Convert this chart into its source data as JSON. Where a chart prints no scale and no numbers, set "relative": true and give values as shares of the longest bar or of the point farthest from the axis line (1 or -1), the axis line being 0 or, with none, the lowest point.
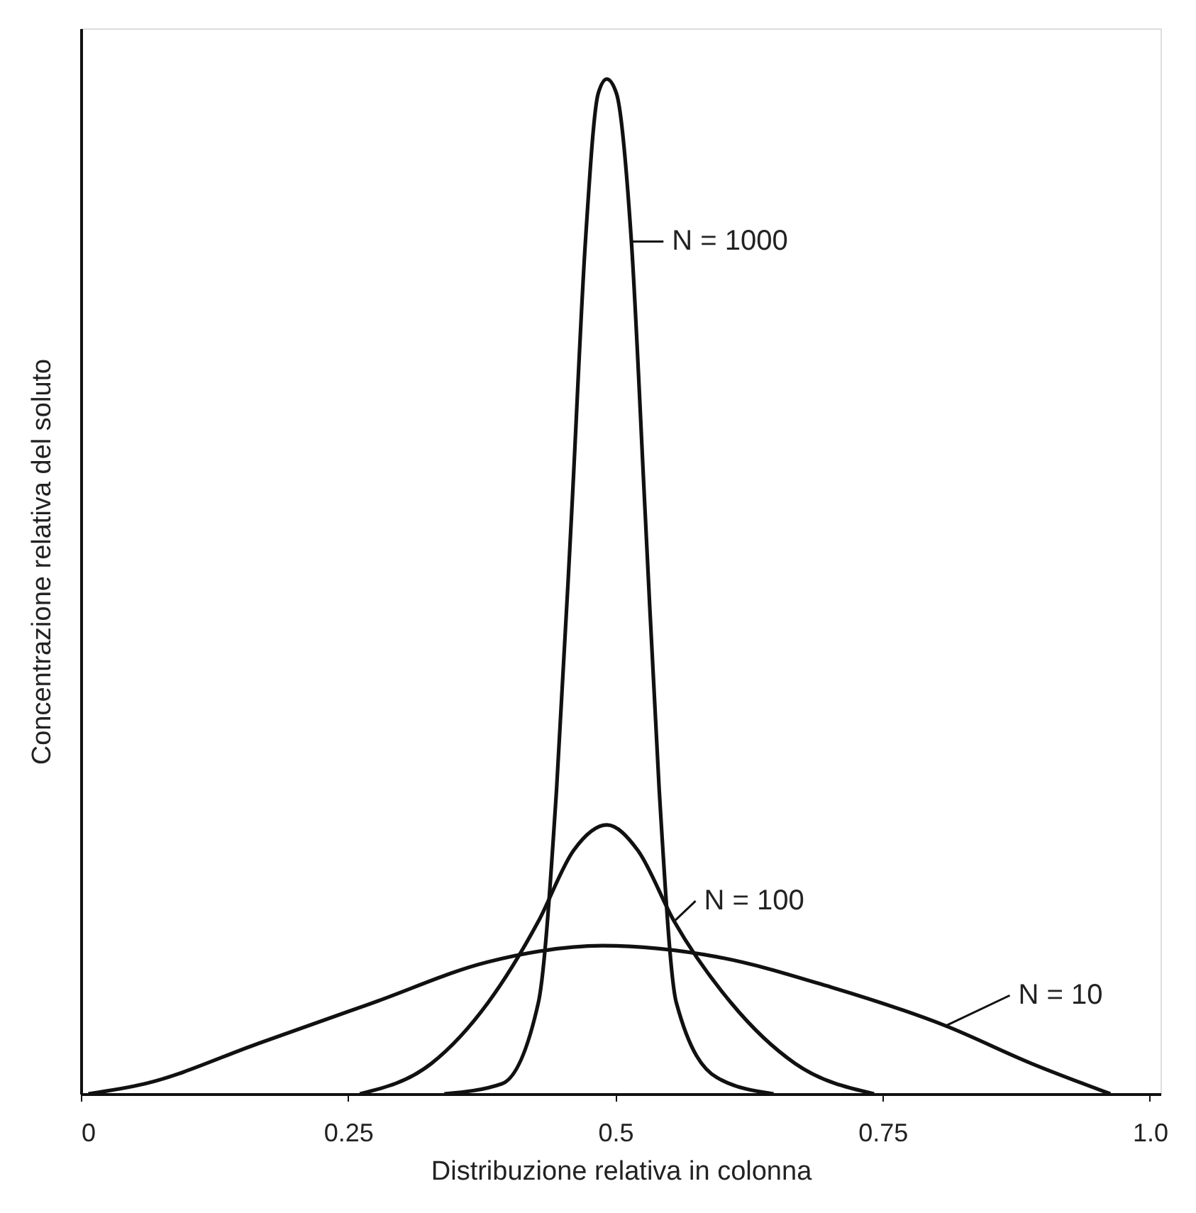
{
  "chart_data": {
    "type": "line",
    "relative": true,
    "xlabel": "Distribuzione relativa in colonna",
    "ylabel": "Concentrazione relativa del soluto",
    "xlim": [
      0,
      1.01
    ],
    "xticks": [
      0,
      0.25,
      0.5,
      0.75,
      {
        "value": 1.0,
        "label": "1.0"
      }
    ],
    "grid": false,
    "legend": "right",
    "marker": "none",
    "line_style": "solid",
    "series": [
      {
        "name": "N = 1000",
        "color": "#111111",
        "x": [
          0.34,
          0.394,
          0.428,
          0.445,
          0.459,
          0.472,
          0.484,
          0.492,
          0.501,
          0.515,
          0.528,
          0.541,
          0.557,
          0.595,
          0.648
        ],
        "values": [
          0,
          0.01,
          0.09,
          0.3,
          0.57,
          0.84,
          0.986,
          1,
          0.986,
          0.84,
          0.57,
          0.3,
          0.09,
          0.016,
          0
        ]
      },
      {
        "name": "N = 100",
        "color": "#111111",
        "x": [
          0.261,
          0.328,
          0.381,
          0.428,
          0.461,
          0.492,
          0.521,
          0.555,
          0.608,
          0.668,
          0.742
        ],
        "values": [
          0,
          0.03,
          0.09,
          0.17,
          0.24,
          0.265,
          0.24,
          0.17,
          0.09,
          0.03,
          0
        ]
      },
      {
        "name": "N = 10",
        "color": "#111111",
        "x": [
          0.007,
          0.06,
          0.167,
          0.274,
          0.381,
          0.488,
          0.595,
          0.702,
          0.809,
          0.889,
          0.963
        ],
        "values": [
          0,
          0.01,
          0.05,
          0.09,
          0.13,
          0.146,
          0.135,
          0.105,
          0.067,
          0.03,
          0
        ]
      }
    ]
  }
}
